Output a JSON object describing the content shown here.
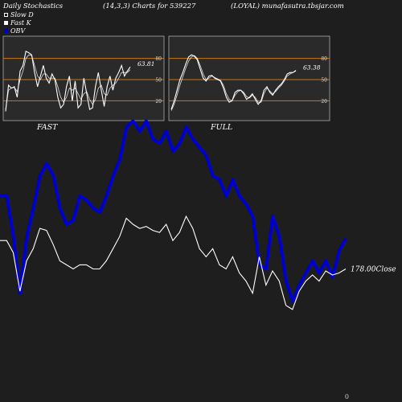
{
  "header": {
    "title": "Daily Stochastics",
    "params": "(14,3,3) Charts for 539227",
    "symbol": "(LOYAL) munafasutra.tbsjar.com"
  },
  "legend": {
    "slow_d": "Slow  D",
    "fast_k": "Fast K",
    "obv": "OBV"
  },
  "panels": {
    "fast_label": "FAST",
    "full_label": "FULL"
  },
  "footer": "0",
  "colors": {
    "background": "#1e1e1e",
    "panel_background": "#2a2a2a",
    "orange_levels": "#c87818",
    "stoch_lines": "#ffffff",
    "obv": "#0000cc",
    "close": "#ffffff"
  },
  "chart_data": [
    {
      "type": "line",
      "panel": "FAST",
      "y_ticks": [
        20,
        50,
        80
      ],
      "ylim": [
        0,
        100
      ],
      "levels": [
        20,
        50,
        80
      ],
      "last_value_label": "63.81",
      "series": [
        {
          "name": "Fast K",
          "values": [
            5,
            42,
            38,
            40,
            25,
            62,
            70,
            90,
            88,
            85,
            60,
            40,
            55,
            70,
            52,
            45,
            58,
            50,
            25,
            10,
            15,
            40,
            55,
            20,
            48,
            10,
            15,
            52,
            30,
            8,
            10,
            40,
            60,
            35,
            12,
            40,
            55,
            35,
            52,
            60,
            70,
            55,
            62,
            68
          ]
        },
        {
          "name": "Slow D",
          "values": [
            8,
            35,
            38,
            39,
            33,
            50,
            62,
            80,
            85,
            84,
            70,
            55,
            50,
            58,
            58,
            52,
            52,
            52,
            40,
            25,
            18,
            25,
            38,
            35,
            38,
            30,
            22,
            30,
            33,
            22,
            15,
            22,
            38,
            42,
            30,
            28,
            38,
            42,
            45,
            52,
            60,
            60,
            60,
            64
          ]
        }
      ]
    },
    {
      "type": "line",
      "panel": "FULL",
      "y_ticks": [
        20,
        50,
        80
      ],
      "ylim": [
        0,
        100
      ],
      "levels": [
        20,
        50,
        80
      ],
      "last_value_label": "63.38",
      "series": [
        {
          "name": "Fast K",
          "values": [
            8,
            20,
            35,
            50,
            60,
            72,
            82,
            85,
            83,
            78,
            65,
            52,
            48,
            55,
            56,
            52,
            50,
            48,
            38,
            25,
            18,
            20,
            32,
            35,
            35,
            30,
            22,
            25,
            30,
            22,
            15,
            20,
            35,
            40,
            32,
            28,
            35,
            40,
            44,
            50,
            58,
            60,
            60,
            63
          ]
        },
        {
          "name": "Slow D",
          "values": [
            6,
            15,
            28,
            42,
            54,
            66,
            76,
            82,
            84,
            80,
            70,
            58,
            50,
            52,
            55,
            53,
            51,
            49,
            42,
            30,
            22,
            20,
            28,
            33,
            35,
            32,
            26,
            24,
            28,
            25,
            18,
            18,
            30,
            38,
            34,
            30,
            33,
            38,
            42,
            48,
            55,
            58,
            60,
            62
          ]
        }
      ]
    },
    {
      "type": "line",
      "panel": "main",
      "close_label": "178.00Close",
      "ylim": [
        0,
        100
      ],
      "series": [
        {
          "name": "OBV",
          "values": [
            62,
            62,
            42,
            14,
            42,
            56,
            72,
            78,
            72,
            56,
            48,
            50,
            62,
            60,
            56,
            54,
            62,
            72,
            80,
            96,
            99,
            94,
            99,
            90,
            88,
            94,
            84,
            88,
            96,
            90,
            86,
            82,
            72,
            70,
            62,
            70,
            62,
            58,
            52,
            28,
            26,
            52,
            42,
            20,
            10,
            18,
            24,
            30,
            24,
            30,
            22,
            35,
            41
          ]
        },
        {
          "name": "Close",
          "values": [
            40,
            40,
            34,
            15,
            30,
            36,
            46,
            45,
            38,
            30,
            28,
            26,
            28,
            28,
            26,
            26,
            30,
            36,
            42,
            51,
            48,
            46,
            47,
            45,
            44,
            48,
            40,
            44,
            52,
            46,
            36,
            32,
            36,
            28,
            26,
            32,
            24,
            20,
            14,
            32,
            18,
            25,
            20,
            8,
            6,
            15,
            20,
            23,
            20,
            25,
            23,
            24,
            26
          ]
        }
      ]
    }
  ]
}
